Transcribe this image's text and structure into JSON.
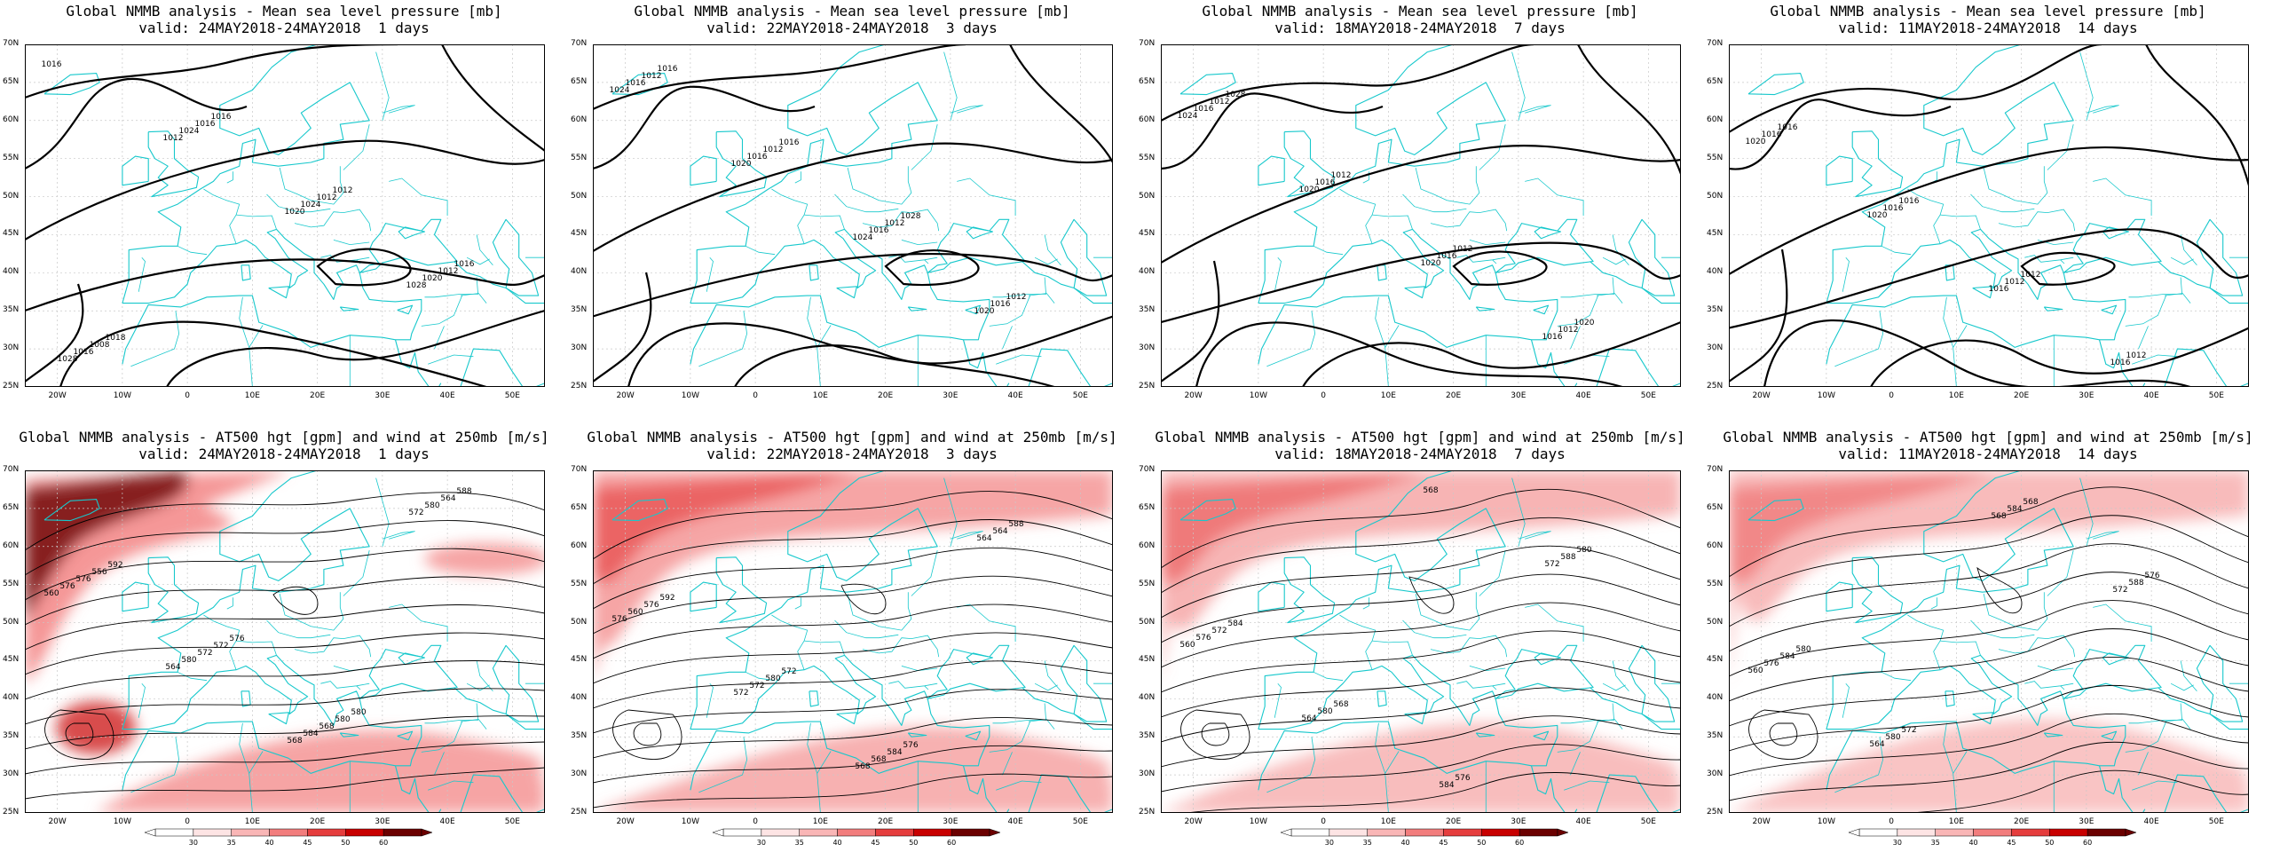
{
  "panels": [
    {
      "title_line1": "Global NMMB analysis - Mean sea level pressure [mb]",
      "title_line2": "valid: 24MAY2018-24MAY2018  1 days",
      "kind": "mslp",
      "contour_labels": [
        "1016",
        "1012",
        "1020",
        "1028",
        "1028",
        "1024",
        "1024",
        "1020",
        "1016",
        "1016",
        "1012",
        "1012",
        "1008",
        "1016",
        "1012",
        "1016",
        "1018"
      ]
    },
    {
      "title_line1": "Global NMMB analysis - Mean sea level pressure [mb]",
      "title_line2": "valid: 22MAY2018-24MAY2018  3 days",
      "kind": "mslp",
      "contour_labels": [
        "1024",
        "1020",
        "1024",
        "1020",
        "1016",
        "1016",
        "1016",
        "1016",
        "1012",
        "1012",
        "1012",
        "1012",
        "1016",
        "1016",
        "1028"
      ]
    },
    {
      "title_line1": "Global NMMB analysis - Mean sea level pressure [mb]",
      "title_line2": "valid: 18MAY2018-24MAY2018  7 days",
      "kind": "mslp",
      "contour_labels": [
        "1024",
        "1020",
        "1020",
        "1016",
        "1016",
        "1016",
        "1016",
        "1012",
        "1012",
        "1012",
        "1012",
        "1020",
        "1028"
      ]
    },
    {
      "title_line1": "Global NMMB analysis - Mean sea level pressure [mb]",
      "title_line2": "valid: 11MAY2018-24MAY2018  14 days",
      "kind": "mslp",
      "contour_labels": [
        "1020",
        "1020",
        "1016",
        "1016",
        "1016",
        "1016",
        "1012",
        "1012",
        "1016",
        "1016",
        "1012"
      ]
    },
    {
      "title_line1": "Global NMMB analysis - AT500 hgt [gpm] and wind at 250mb [m/s]",
      "title_line2": "valid: 24MAY2018-24MAY2018  1 days",
      "kind": "z500",
      "contour_labels": [
        "560",
        "564",
        "568",
        "572",
        "576",
        "580",
        "584",
        "580",
        "576",
        "572",
        "568",
        "564",
        "556",
        "572",
        "580",
        "588",
        "592",
        "576",
        "580"
      ]
    },
    {
      "title_line1": "Global NMMB analysis - AT500 hgt [gpm] and wind at 250mb [m/s]",
      "title_line2": "valid: 22MAY2018-24MAY2018  3 days",
      "kind": "z500",
      "contour_labels": [
        "576",
        "572",
        "568",
        "564",
        "560",
        "572",
        "568",
        "564",
        "576",
        "580",
        "584",
        "588",
        "592",
        "572",
        "576"
      ]
    },
    {
      "title_line1": "Global NMMB analysis - AT500 hgt [gpm] and wind at 250mb [m/s]",
      "title_line2": "valid: 18MAY2018-24MAY2018  7 days",
      "kind": "z500",
      "contour_labels": [
        "560",
        "564",
        "568",
        "572",
        "576",
        "580",
        "584",
        "588",
        "572",
        "568",
        "576",
        "580",
        "584"
      ]
    },
    {
      "title_line1": "Global NMMB analysis - AT500 hgt [gpm] and wind at 250mb [m/s]",
      "title_line2": "valid: 11MAY2018-24MAY2018  14 days",
      "kind": "z500",
      "contour_labels": [
        "560",
        "564",
        "568",
        "572",
        "576",
        "580",
        "584",
        "588",
        "584",
        "572",
        "568",
        "576",
        "580"
      ]
    }
  ],
  "lat_labels": [
    "70N",
    "65N",
    "60N",
    "55N",
    "50N",
    "45N",
    "40N",
    "35N",
    "30N",
    "25N"
  ],
  "lon_labels": [
    "20W",
    "10W",
    "0",
    "10E",
    "20E",
    "30E",
    "40E",
    "50E"
  ],
  "colorbar": {
    "labels": [
      "30",
      "35",
      "40",
      "45",
      "50",
      "60"
    ],
    "colors": [
      "#ffffff",
      "#fde4e4",
      "#f9b6b6",
      "#f27d7d",
      "#e53d3d",
      "#c80000",
      "#6b0000"
    ]
  },
  "colors": {
    "coast": "#17c8cc",
    "contour": "#000000",
    "grid": "#c8c8c8"
  }
}
